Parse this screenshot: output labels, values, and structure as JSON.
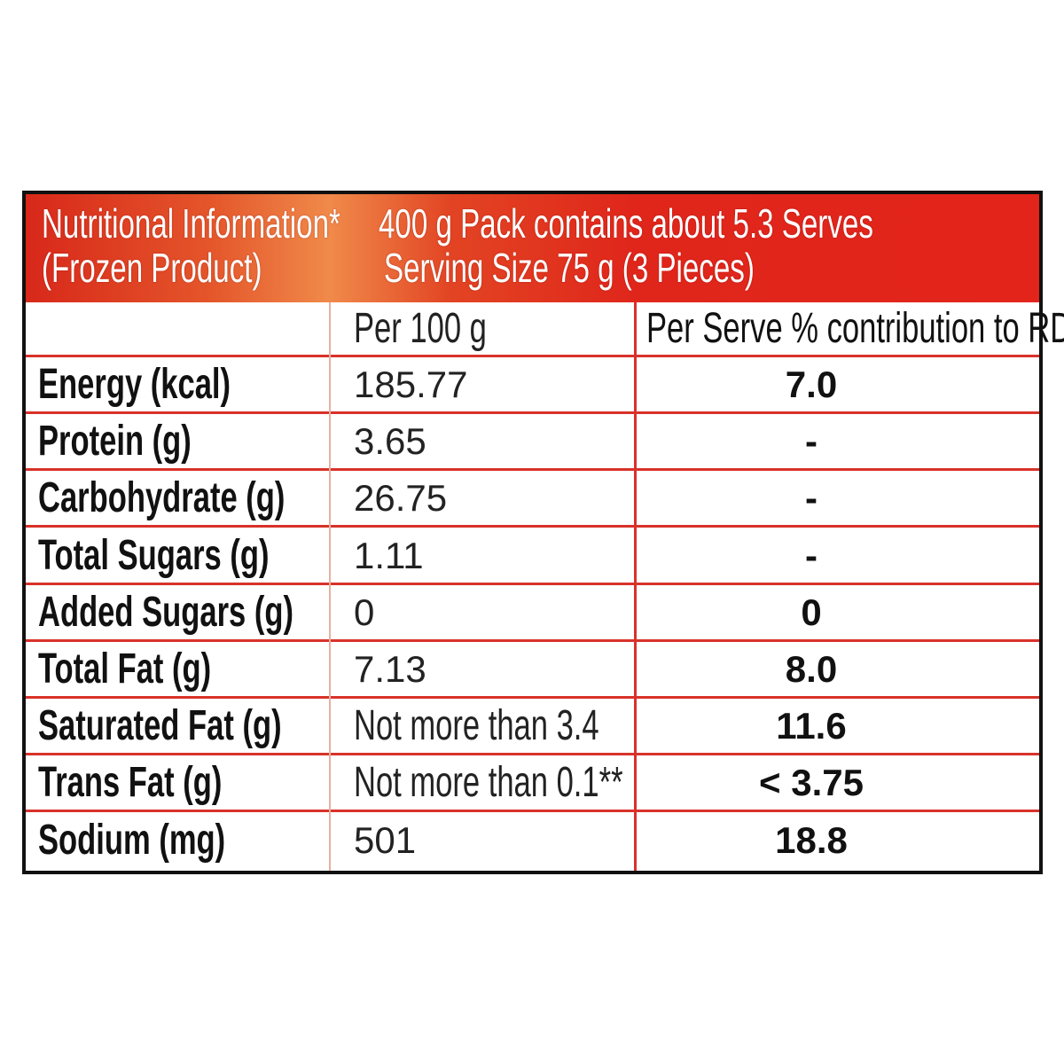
{
  "header": {
    "title": "Nutritional Information*",
    "subtitle": "(Frozen Product)",
    "pack_info": "400 g Pack contains about 5.3 Serves",
    "serving_size": "Serving Size 75 g (3 Pieces)"
  },
  "columns": [
    "",
    "Per 100 g",
    "Per Serve % contribution to RDA^"
  ],
  "rows": [
    {
      "nutrient": "Energy (kcal)",
      "per_100g": "185.77",
      "rda": "7.0"
    },
    {
      "nutrient": "Protein (g)",
      "per_100g": "3.65",
      "rda": "-"
    },
    {
      "nutrient": "Carbohydrate (g)",
      "per_100g": "26.75",
      "rda": "-"
    },
    {
      "nutrient": "Total Sugars (g)",
      "per_100g": "1.11",
      "rda": "-"
    },
    {
      "nutrient": "Added Sugars (g)",
      "per_100g": "0",
      "rda": "0"
    },
    {
      "nutrient": "Total Fat (g)",
      "per_100g": "7.13",
      "rda": "8.0"
    },
    {
      "nutrient": "Saturated Fat (g)",
      "per_100g": "Not more than 3.4",
      "rda": "11.6"
    },
    {
      "nutrient": "Trans Fat (g)",
      "per_100g": "Not more than 0.1**",
      "rda": "< 3.75"
    },
    {
      "nutrient": "Sodium (mg)",
      "per_100g": "501",
      "rda": "18.8"
    }
  ],
  "colors": {
    "header_red": "#e3241b",
    "rule_red": "#d8322a",
    "border": "#111111"
  }
}
